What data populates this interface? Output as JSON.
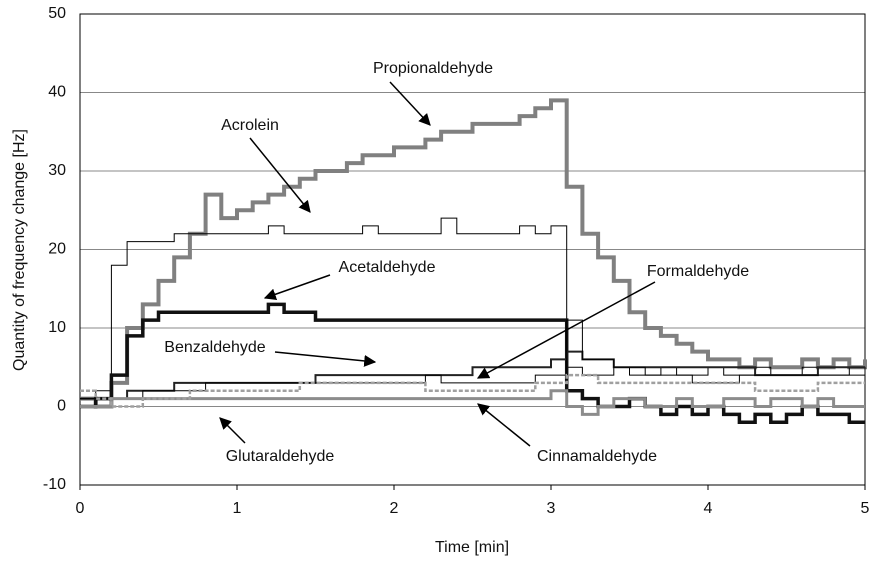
{
  "chart_data": {
    "type": "line",
    "xlabel": "Time [min]",
    "ylabel": "Quantity of frequency change [Hz]",
    "x": [
      0,
      0.1,
      0.2,
      0.3,
      0.4,
      0.5,
      0.6,
      0.7,
      0.8,
      0.9,
      1,
      1.1,
      1.2,
      1.3,
      1.4,
      1.5,
      1.6,
      1.7,
      1.8,
      1.9,
      2,
      2.1,
      2.2,
      2.3,
      2.4,
      2.5,
      2.6,
      2.7,
      2.8,
      2.9,
      3,
      3.1,
      3.2,
      3.3,
      3.4,
      3.5,
      3.6,
      3.7,
      3.8,
      3.9,
      4,
      4.1,
      4.2,
      4.3,
      4.4,
      4.5,
      4.6,
      4.7,
      4.8,
      4.9,
      5
    ],
    "series": [
      {
        "name": "Propionaldehyde",
        "color": "#808080",
        "values": [
          1,
          0,
          3,
          10,
          13,
          16,
          19,
          22,
          27,
          24,
          25,
          26,
          27,
          28,
          29,
          30,
          30,
          31,
          32,
          32,
          33,
          33,
          34,
          35,
          35,
          36,
          36,
          36,
          37,
          38,
          39,
          28,
          22,
          19,
          16,
          12,
          10,
          9,
          8,
          7,
          6,
          6,
          5,
          6,
          5,
          5,
          6,
          5,
          6,
          5,
          6
        ]
      },
      {
        "name": "Acrolein",
        "color": "#000000",
        "values": [
          1,
          2,
          18,
          21,
          21,
          21,
          22,
          22,
          22,
          22,
          22,
          22,
          23,
          22,
          22,
          22,
          22,
          22,
          23,
          22,
          22,
          22,
          22,
          24,
          22,
          22,
          22,
          22,
          23,
          22,
          23,
          5,
          4,
          4,
          5,
          4,
          4,
          5,
          4,
          4,
          5,
          4,
          4,
          5,
          4,
          4,
          5,
          4,
          4,
          5,
          4
        ]
      },
      {
        "name": "Acetaldehyde",
        "color": "#111111",
        "values": [
          0,
          1,
          4,
          9,
          11,
          12,
          12,
          12,
          12,
          12,
          12,
          12,
          13,
          12,
          12,
          11,
          11,
          11,
          11,
          11,
          11,
          11,
          11,
          11,
          11,
          11,
          11,
          11,
          11,
          11,
          11,
          2,
          1,
          0,
          0,
          1,
          0,
          -1,
          0,
          -1,
          0,
          -1,
          -2,
          -1,
          -2,
          -1,
          0,
          -1,
          -1,
          -2,
          -2
        ]
      },
      {
        "name": "Benzaldehyde",
        "color": "#222222",
        "values": [
          1,
          1,
          1,
          2,
          2,
          2,
          3,
          3,
          3,
          3,
          3,
          3,
          3,
          3,
          3,
          4,
          4,
          4,
          4,
          4,
          4,
          4,
          4,
          4,
          4,
          5,
          5,
          5,
          5,
          5,
          6,
          7,
          6,
          6,
          5,
          5,
          5,
          5,
          5,
          5,
          5,
          5,
          5,
          4,
          4,
          4,
          4,
          5,
          5,
          5,
          5
        ]
      },
      {
        "name": "Formaldehyde",
        "color": "#000000",
        "values": [
          1,
          1,
          1,
          1,
          2,
          2,
          2,
          2,
          3,
          3,
          3,
          3,
          3,
          3,
          3,
          3,
          3,
          3,
          3,
          3,
          3,
          3,
          4,
          3,
          3,
          3,
          3,
          3,
          3,
          4,
          4,
          11,
          6,
          6,
          5,
          5,
          4,
          4,
          4,
          3,
          3,
          3,
          4,
          4,
          4,
          4,
          4,
          4,
          4,
          4,
          4
        ]
      },
      {
        "name": "Glutaraldehyde",
        "color": "#8c8c8c",
        "values": [
          0,
          0,
          1,
          1,
          1,
          1,
          1,
          1,
          1,
          1,
          1,
          1,
          1,
          1,
          1,
          1,
          1,
          1,
          1,
          1,
          1,
          1,
          1,
          1,
          1,
          1,
          1,
          1,
          1,
          1,
          2,
          0,
          -1,
          0,
          1,
          1,
          0,
          0,
          1,
          0,
          0,
          1,
          1,
          0,
          1,
          1,
          0,
          1,
          0,
          0,
          0
        ]
      },
      {
        "name": "Cinnamaldehyde",
        "color": "#a0a0a0",
        "values": [
          2,
          1,
          0,
          0,
          1,
          1,
          1,
          2,
          2,
          2,
          2,
          2,
          2,
          2,
          3,
          3,
          3,
          3,
          3,
          3,
          3,
          3,
          2,
          2,
          2,
          2,
          2,
          2,
          2,
          3,
          3,
          4,
          4,
          3,
          3,
          3,
          3,
          3,
          3,
          3,
          3,
          3,
          3,
          2,
          2,
          2,
          2,
          3,
          3,
          3,
          3
        ]
      }
    ],
    "xlim": [
      0,
      5
    ],
    "xticks": [
      0,
      1,
      2,
      3,
      4,
      5
    ],
    "ylim": [
      -10,
      50
    ],
    "yticks": [
      -10,
      0,
      10,
      20,
      30,
      40,
      50
    ],
    "grid": true
  }
}
